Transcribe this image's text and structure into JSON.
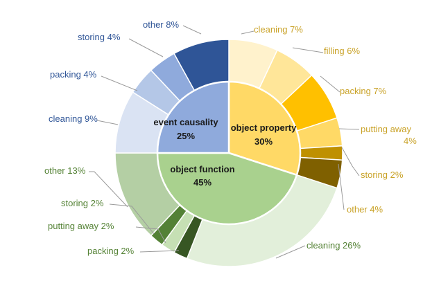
{
  "chart_data": {
    "type": "pie",
    "subtype": "nested-donut",
    "title": "",
    "inner_ring": [
      {
        "name": "object property",
        "value": 30,
        "label": "object property",
        "pct_label": "30%",
        "color": "#FFD966"
      },
      {
        "name": "object function",
        "value": 45,
        "label": "object function",
        "pct_label": "45%",
        "color": "#A9D18E"
      },
      {
        "name": "event causality",
        "value": 25,
        "label": "event causality",
        "pct_label": "25%",
        "color": "#8FAADC"
      }
    ],
    "outer_ring": [
      {
        "group": "object property",
        "name": "cleaning",
        "value": 7,
        "label": "cleaning 7%",
        "color": "#FFF2CC",
        "text_color": "#C9A227"
      },
      {
        "group": "object property",
        "name": "filling",
        "value": 6,
        "label": "filling 6%",
        "color": "#FFE699",
        "text_color": "#C9A227"
      },
      {
        "group": "object property",
        "name": "packing",
        "value": 7,
        "label": "packing 7%",
        "color": "#FFC000",
        "text_color": "#C9A227"
      },
      {
        "group": "object property",
        "name": "putting away",
        "value": 4,
        "label": "putting away 4%",
        "color": "#FFD966",
        "text_color": "#C9A227"
      },
      {
        "group": "object property",
        "name": "storing",
        "value": 2,
        "label": "storing 2%",
        "color": "#BF9000",
        "text_color": "#C9A227"
      },
      {
        "group": "object property",
        "name": "other",
        "value": 4,
        "label": "other 4%",
        "color": "#7F6000",
        "text_color": "#C9A227"
      },
      {
        "group": "object function",
        "name": "cleaning",
        "value": 26,
        "label": "cleaning 26%",
        "color": "#E2EFDA",
        "text_color": "#548235"
      },
      {
        "group": "object function",
        "name": "packing",
        "value": 2,
        "label": "packing 2%",
        "color": "#375623",
        "text_color": "#548235"
      },
      {
        "group": "object function",
        "name": "putting away",
        "value": 2,
        "label": "putting away  2%",
        "color": "#C6E0B4",
        "text_color": "#548235"
      },
      {
        "group": "object function",
        "name": "storing",
        "value": 2,
        "label": "storing 2%",
        "color": "#538135",
        "text_color": "#548235"
      },
      {
        "group": "object function",
        "name": "other",
        "value": 13,
        "label": "other 13%",
        "color": "#B4CFA4",
        "text_color": "#548235"
      },
      {
        "group": "event causality",
        "name": "cleaning",
        "value": 9,
        "label": "cleaning 9%",
        "color": "#DAE3F3",
        "text_color": "#2F5597"
      },
      {
        "group": "event causality",
        "name": "packing",
        "value": 4,
        "label": "packing 4%",
        "color": "#B4C7E7",
        "text_color": "#2F5597"
      },
      {
        "group": "event causality",
        "name": "storing",
        "value": 4,
        "label": "storing 4%",
        "color": "#8FAADC",
        "text_color": "#2F5597"
      },
      {
        "group": "event causality",
        "name": "other",
        "value": 8,
        "label": "other 8%",
        "color": "#2F5597",
        "text_color": "#2F5597"
      }
    ],
    "legend": "none"
  }
}
